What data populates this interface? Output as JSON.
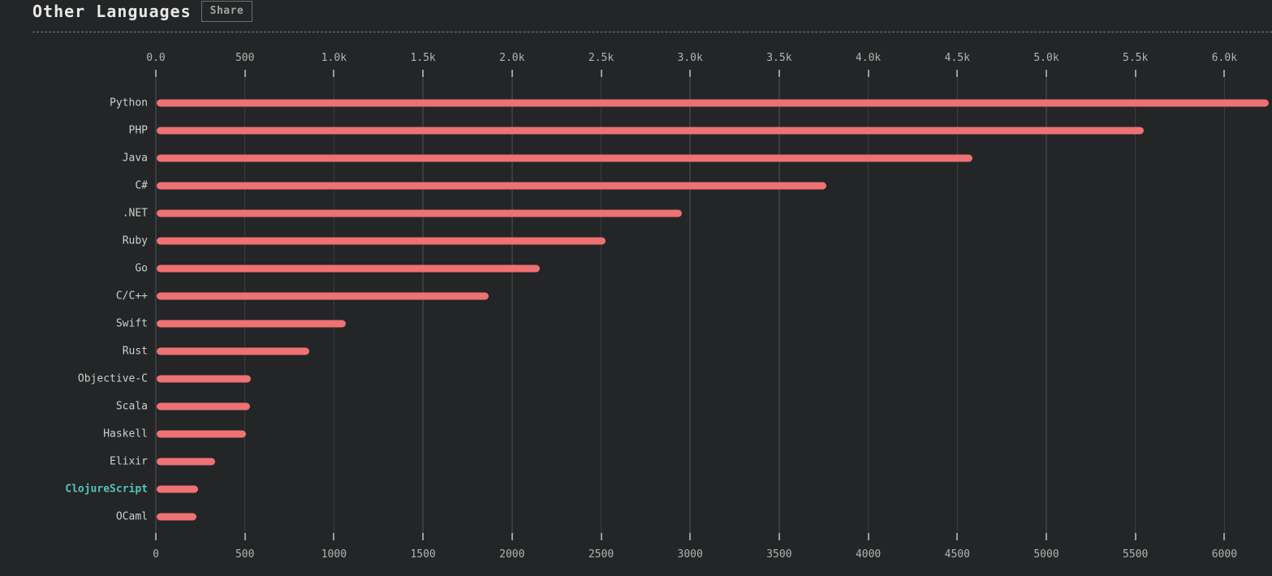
{
  "header": {
    "title": "Other Languages",
    "share_label": "Share"
  },
  "chart_data": {
    "type": "bar",
    "orientation": "horizontal",
    "title": "Other Languages",
    "xlabel": "",
    "ylabel": "",
    "categories": [
      "Python",
      "PHP",
      "Java",
      "C#",
      ".NET",
      "Ruby",
      "Go",
      "C/C++",
      "Swift",
      "Rust",
      "Objective-C",
      "Scala",
      "Haskell",
      "Elixir",
      "ClojureScript",
      "OCaml"
    ],
    "values": [
      6250,
      5545,
      4585,
      3765,
      2955,
      2525,
      2155,
      1870,
      1065,
      860,
      535,
      530,
      505,
      335,
      235,
      230
    ],
    "highlighted_category": "ClojureScript",
    "grid": true,
    "axis": {
      "tick_values": [
        0,
        500,
        1000,
        1500,
        2000,
        2500,
        3000,
        3500,
        4000,
        4500,
        5000,
        5500,
        6000
      ],
      "top_tick_labels": [
        "0.0",
        "500",
        "1.0k",
        "1.5k",
        "2.0k",
        "2.5k",
        "3.0k",
        "3.5k",
        "4.0k",
        "4.5k",
        "5.0k",
        "5.5k",
        "6.0k"
      ],
      "bottom_tick_labels": [
        "0",
        "500",
        "1000",
        "1500",
        "2000",
        "2500",
        "3000",
        "3500",
        "4000",
        "4500",
        "5000",
        "5500",
        "6000"
      ],
      "xlim": [
        0,
        6268
      ]
    }
  },
  "colors": {
    "background": "#232526",
    "bar": "#ee7173",
    "highlight": "#52c5b7",
    "title_text": "#e8e8e8",
    "label_text": "#cfcfcf",
    "axis_text": "#b3b3b3",
    "gridline": "#3a3c3d",
    "tick": "#9c9c9c",
    "divider": "#7d7d7d",
    "share_border": "#6f6f6f",
    "share_text": "#a3a3a3"
  }
}
